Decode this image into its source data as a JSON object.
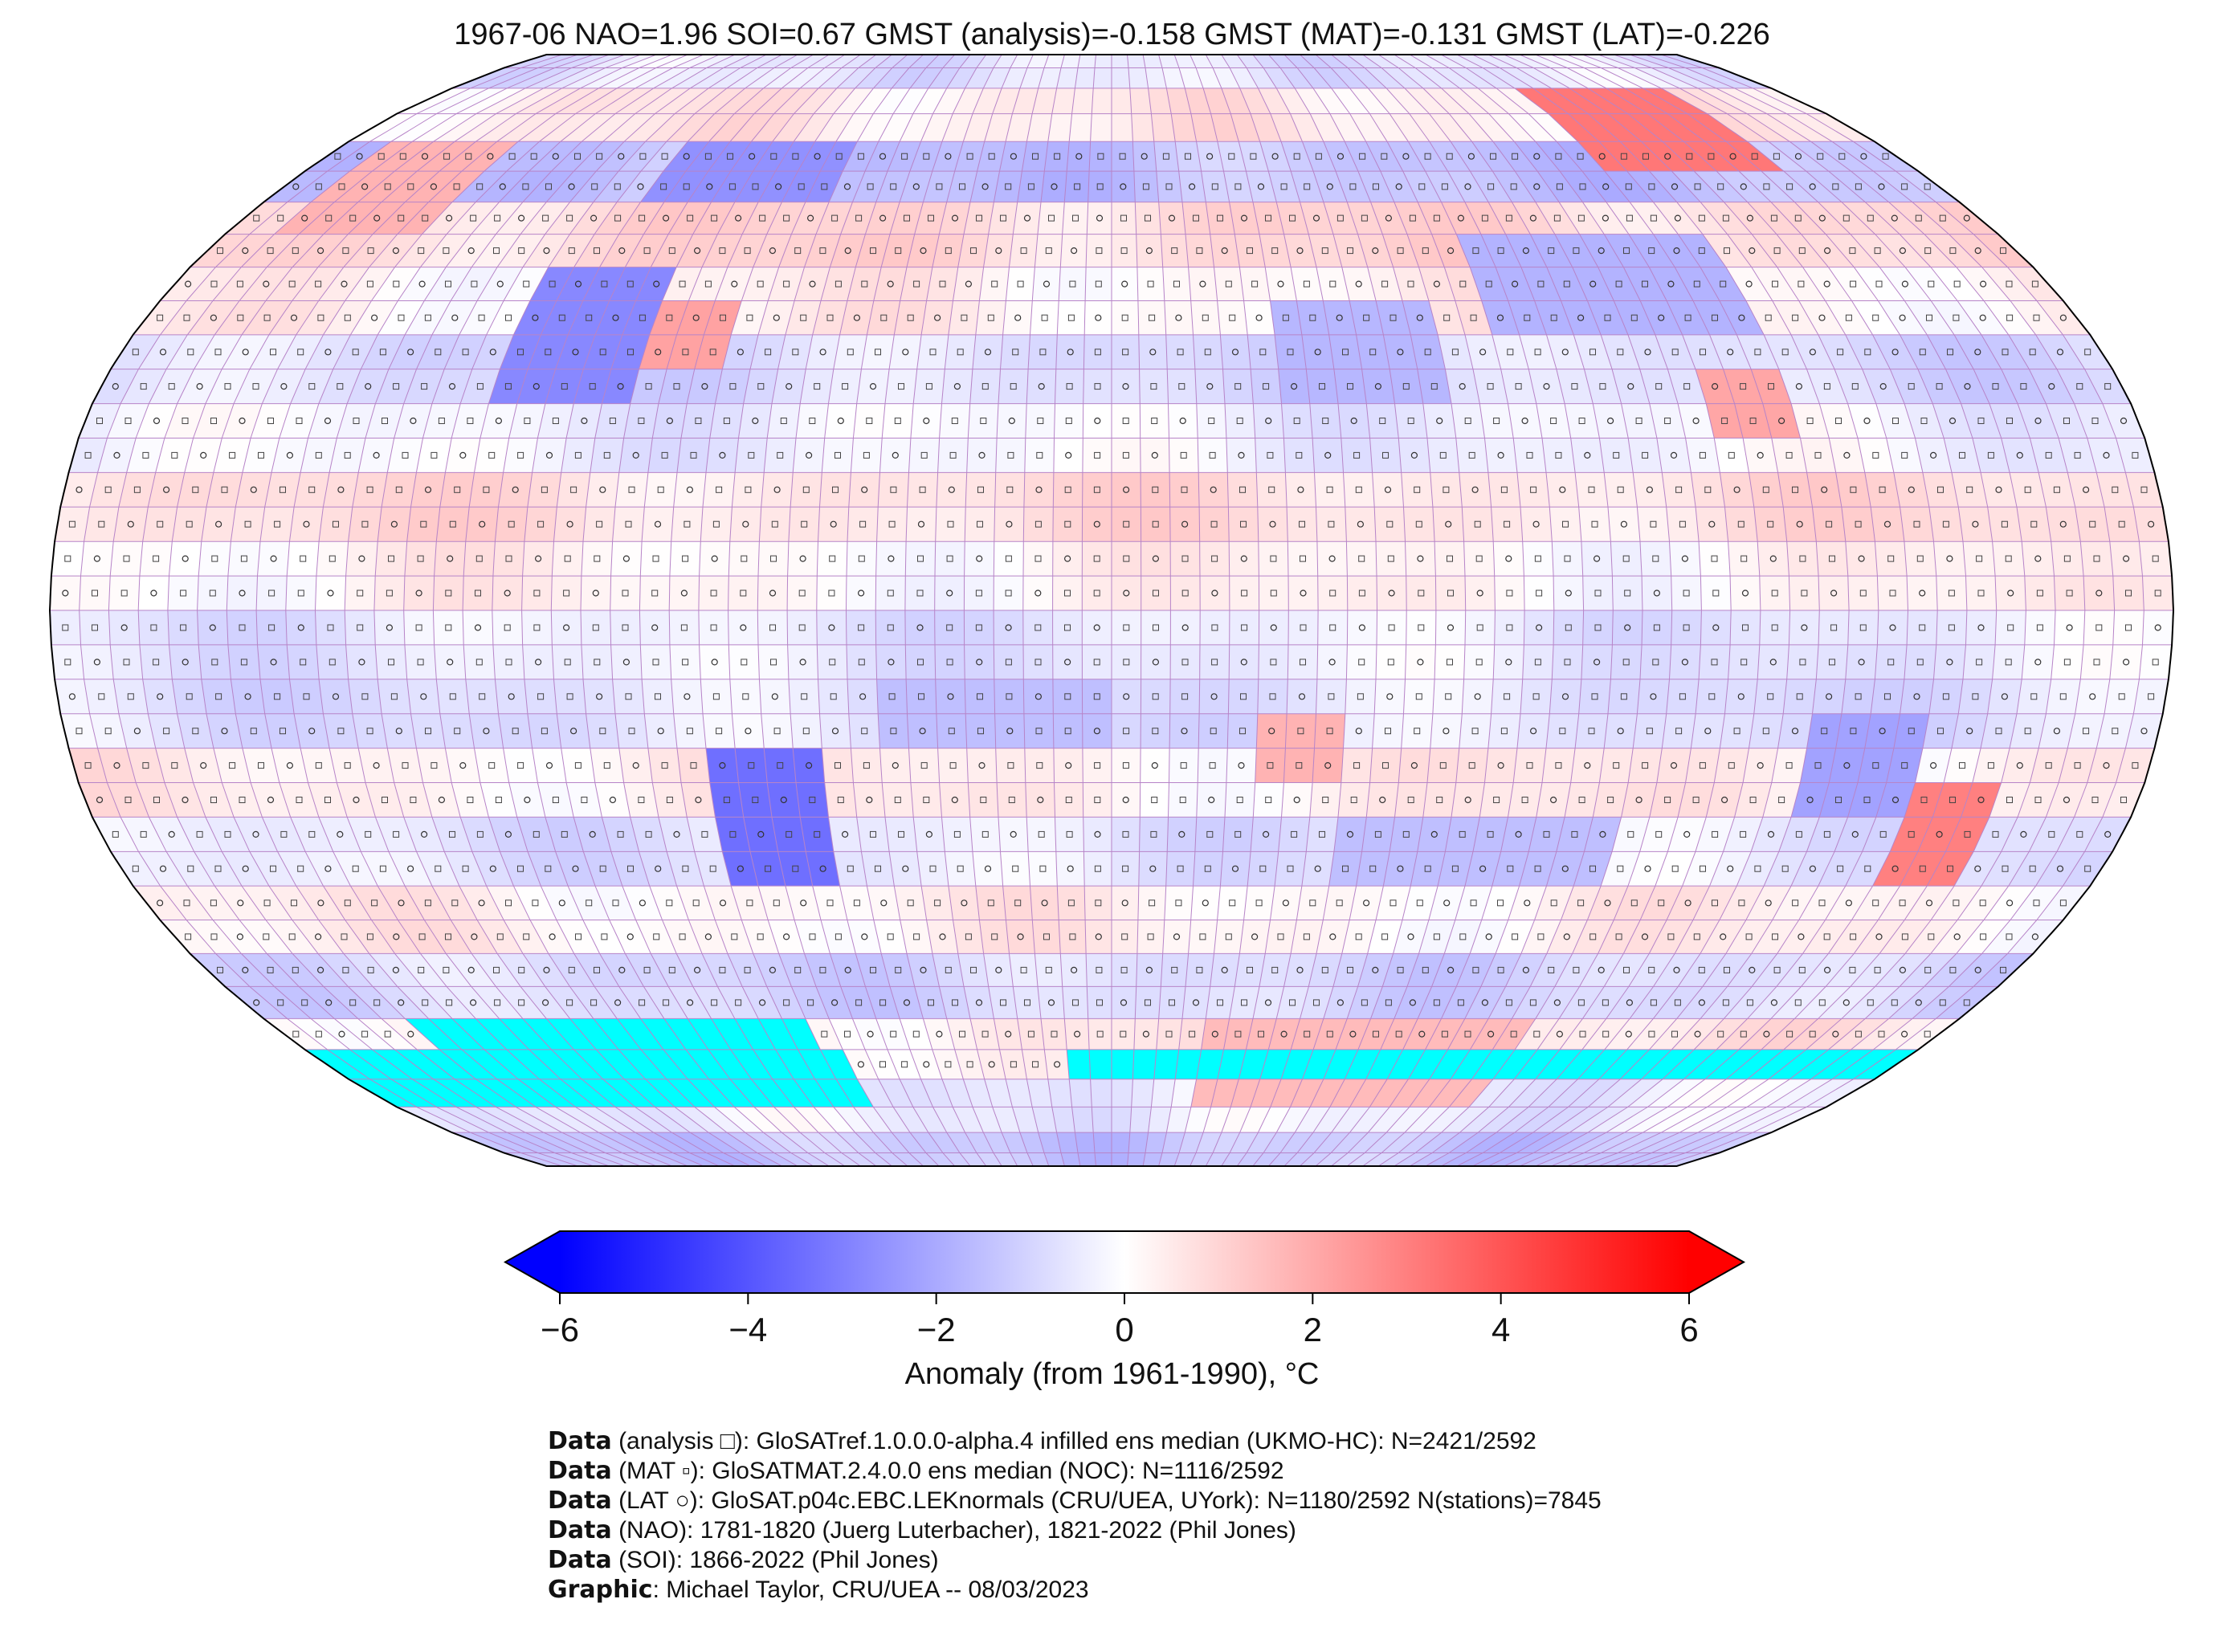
{
  "title": "1967-06 NAO=1.96 SOI=0.67 GMST (analysis)=-0.158 GMST (MAT)=-0.131 GMST (LAT)=-0.226",
  "colorbar": {
    "label": "Anomaly (from 1961-1990), °C",
    "min": -6,
    "max": 6,
    "ticks": [
      "−6",
      "−4",
      "−2",
      "0",
      "2",
      "4",
      "6"
    ],
    "tick_values": [
      -6,
      -4,
      -2,
      0,
      2,
      4,
      6
    ],
    "colors": {
      "low": "#0000ff",
      "mid": "#ffffff",
      "high": "#ff0000",
      "missing": "#00ffff"
    }
  },
  "credits": [
    {
      "key": "Data",
      "text": " (analysis □): GloSATref.1.0.0.0-alpha.4 infilled ens median (UKMO-HC): N=2421/2592"
    },
    {
      "key": "Data",
      "text": " (MAT ▫): GloSATMAT.2.4.0.0 ens median (NOC): N=1116/2592"
    },
    {
      "key": "Data",
      "text": " (LAT ○): GloSAT.p04c.EBC.LEKnormals (CRU/UEA, UYork): N=1180/2592 N(stations)=7845"
    },
    {
      "key": "Data",
      "text": " (NAO): 1781-1820 (Juerg Luterbacher), 1821-2022 (Phil Jones)"
    },
    {
      "key": "Data",
      "text": " (SOI): 1866-2022 (Phil Jones)"
    },
    {
      "key": "Graphic",
      "text": ": Michael Taylor, CRU/UEA -- 08/03/2023"
    }
  ],
  "map": {
    "projection": "Robinson",
    "grid_step_deg": 5,
    "missing_bands": [
      {
        "lat_from": -60,
        "lat_to": -70,
        "lon_from": -150,
        "lon_to": -65
      },
      {
        "lat_from": -65,
        "lat_to": -75,
        "lon_from": -180,
        "lon_to": -60
      },
      {
        "lat_from": -65,
        "lat_to": -70,
        "lon_from": -10,
        "lon_to": 180
      }
    ],
    "anomaly_bands": [
      {
        "lat_from": 90,
        "lat_to": 80,
        "value": -0.6
      },
      {
        "lat_from": 80,
        "lat_to": 70,
        "value": 0.5
      },
      {
        "lat_from": 70,
        "lat_to": 60,
        "value": -1.4
      },
      {
        "lat_from": 60,
        "lat_to": 50,
        "value": 0.9
      },
      {
        "lat_from": 50,
        "lat_to": 40,
        "value": 0.3
      },
      {
        "lat_from": 40,
        "lat_to": 30,
        "value": -0.8
      },
      {
        "lat_from": 30,
        "lat_to": 20,
        "value": -0.3
      },
      {
        "lat_from": 20,
        "lat_to": 10,
        "value": 0.7
      },
      {
        "lat_from": 10,
        "lat_to": 0,
        "value": 0.2
      },
      {
        "lat_from": 0,
        "lat_to": -10,
        "value": -0.5
      },
      {
        "lat_from": -10,
        "lat_to": -20,
        "value": -0.7
      },
      {
        "lat_from": -20,
        "lat_to": -30,
        "value": 0.4
      },
      {
        "lat_from": -30,
        "lat_to": -40,
        "value": -0.6
      },
      {
        "lat_from": -40,
        "lat_to": -50,
        "value": 0.3
      },
      {
        "lat_from": -50,
        "lat_to": -60,
        "value": -0.9
      },
      {
        "lat_from": -60,
        "lat_to": -70,
        "value": 0.5
      },
      {
        "lat_from": -70,
        "lat_to": -80,
        "value": -0.4
      },
      {
        "lat_from": -80,
        "lat_to": -90,
        "value": -1.3
      }
    ],
    "anomaly_patches": [
      {
        "name": "north-america-cold",
        "lat_from": 52,
        "lat_to": 28,
        "lon_from": -112,
        "lon_to": -85,
        "value": -2.8
      },
      {
        "name": "eastern-us-warm",
        "lat_from": 45,
        "lat_to": 35,
        "lon_from": -85,
        "lon_to": -70,
        "value": 2.2
      },
      {
        "name": "canada-cold",
        "lat_from": 72,
        "lat_to": 58,
        "lon_from": -100,
        "lon_to": -60,
        "value": -2.6
      },
      {
        "name": "alaska-warm",
        "lat_from": 72,
        "lat_to": 55,
        "lon_from": -170,
        "lon_to": -140,
        "value": 1.8
      },
      {
        "name": "siberia-warm",
        "lat_from": 78,
        "lat_to": 66,
        "lon_from": 110,
        "lon_to": 150,
        "value": 3.2
      },
      {
        "name": "central-asia-cold",
        "lat_from": 55,
        "lat_to": 40,
        "lon_from": 70,
        "lon_to": 120,
        "value": -1.8
      },
      {
        "name": "middle-east-cold",
        "lat_from": 45,
        "lat_to": 30,
        "lon_from": 30,
        "lon_to": 60,
        "value": -1.7
      },
      {
        "name": "china-warm",
        "lat_from": 35,
        "lat_to": 25,
        "lon_from": 105,
        "lon_to": 120,
        "value": 2.1
      },
      {
        "name": "south-america-cold",
        "lat_from": -22,
        "lat_to": -40,
        "lon_from": -68,
        "lon_to": -50,
        "value": -3.4
      },
      {
        "name": "australia-cold",
        "lat_from": -15,
        "lat_to": -28,
        "lon_from": 120,
        "lon_to": 140,
        "value": -2.2
      },
      {
        "name": "se-australia-warm",
        "lat_from": -25,
        "lat_to": -40,
        "lon_from": 140,
        "lon_to": 155,
        "value": 3.0
      },
      {
        "name": "southern-africa-warm",
        "lat_from": -15,
        "lat_to": -25,
        "lon_from": 25,
        "lon_to": 40,
        "value": 1.8
      },
      {
        "name": "indian-ocean-cold",
        "lat_from": -30,
        "lat_to": -38,
        "lon_from": 40,
        "lon_to": 90,
        "value": -1.5
      },
      {
        "name": "antarctic-warm",
        "lat_from": -60,
        "lat_to": -75,
        "lon_from": 20,
        "lon_to": 90,
        "value": 1.6
      },
      {
        "name": "south-atlantic-cold",
        "lat_from": -10,
        "lat_to": -20,
        "lon_from": -40,
        "lon_to": 0,
        "value": -1.5
      }
    ]
  }
}
